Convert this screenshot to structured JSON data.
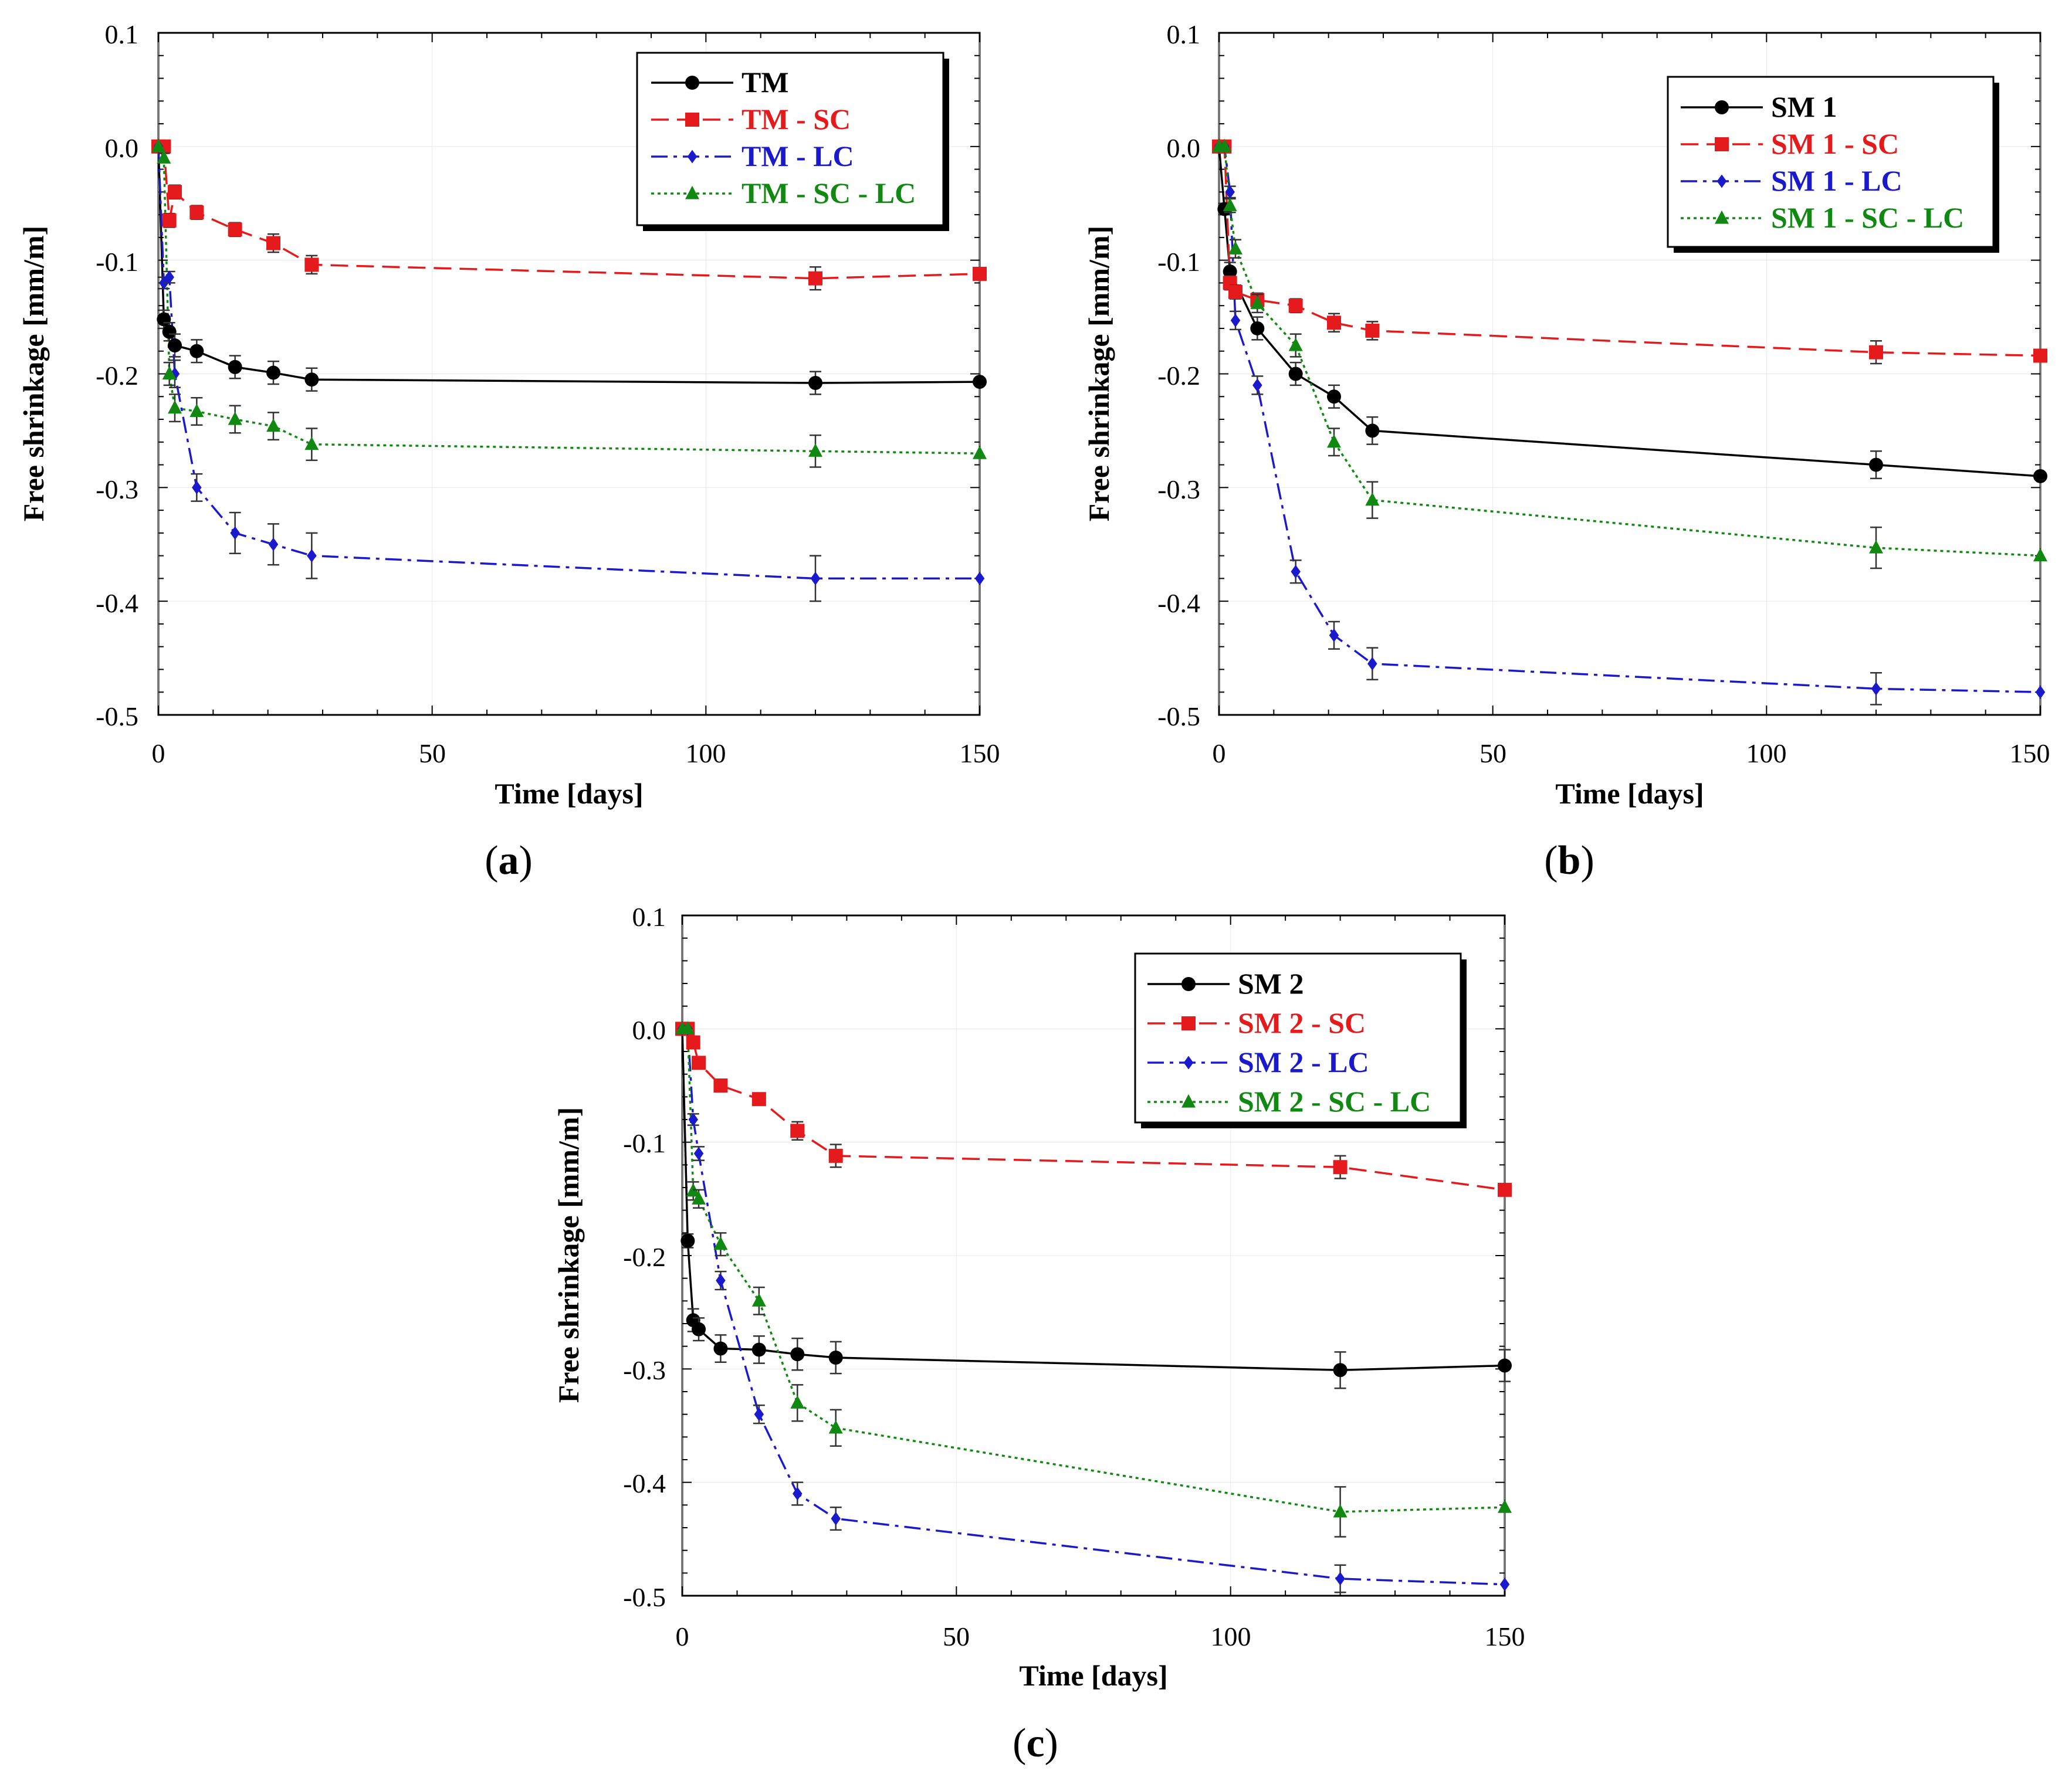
{
  "chart_data": [
    {
      "type": "line",
      "panel_caption": "a",
      "xlabel": "Time [days]",
      "ylabel": "Free shrinkage [mm/m]",
      "xlim": [
        0,
        150
      ],
      "ylim": [
        -0.5,
        0.1
      ],
      "xticks": [
        "0",
        "50",
        "100",
        "150"
      ],
      "yticks": [
        "0.1",
        "0.0",
        "-0.1",
        "-0.2",
        "-0.3",
        "-0.4",
        "-0.5"
      ],
      "legend_position": "top-right",
      "series": [
        {
          "name": "TM",
          "color": "#000000",
          "dash": "solid",
          "marker": "circle",
          "x": [
            0,
            1,
            2,
            3,
            7,
            14,
            21,
            28,
            120,
            150
          ],
          "y": [
            0,
            -0.152,
            -0.163,
            -0.175,
            -0.18,
            -0.194,
            -0.199,
            -0.205,
            -0.208,
            -0.207
          ],
          "err": [
            0,
            0.008,
            0.008,
            0.01,
            0.01,
            0.01,
            0.01,
            0.01,
            0.01,
            0
          ]
        },
        {
          "name": "TM - SC",
          "color": "#e41a1c",
          "dash": "dashed",
          "marker": "square",
          "x": [
            0,
            1,
            2,
            3,
            7,
            14,
            21,
            28,
            120,
            150
          ],
          "y": [
            0,
            0,
            -0.065,
            -0.04,
            -0.058,
            -0.073,
            -0.085,
            -0.104,
            -0.116,
            -0.112
          ],
          "err": [
            0,
            0,
            0.006,
            0.006,
            0.006,
            0.006,
            0.008,
            0.008,
            0.01,
            0
          ]
        },
        {
          "name": "TM - LC",
          "color": "#1a1acc",
          "dash": "dashdot",
          "marker": "diamond",
          "x": [
            0,
            1,
            2,
            3,
            7,
            14,
            21,
            28,
            120,
            150
          ],
          "y": [
            0,
            -0.12,
            -0.115,
            -0.2,
            -0.3,
            -0.34,
            -0.35,
            -0.36,
            -0.38,
            -0.38
          ],
          "err": [
            0,
            0.005,
            0.005,
            0.012,
            0.012,
            0.018,
            0.018,
            0.02,
            0.02,
            0
          ]
        },
        {
          "name": "TM - SC - LC",
          "color": "#118811",
          "dash": "dotted",
          "marker": "triangle",
          "x": [
            0,
            1,
            2,
            3,
            7,
            14,
            21,
            28,
            120,
            150
          ],
          "y": [
            0,
            -0.01,
            -0.2,
            -0.23,
            -0.233,
            -0.24,
            -0.246,
            -0.262,
            -0.268,
            -0.27
          ],
          "err": [
            0,
            0.004,
            0.01,
            0.012,
            0.012,
            0.012,
            0.012,
            0.014,
            0.014,
            0
          ]
        }
      ]
    },
    {
      "type": "line",
      "panel_caption": "b",
      "xlabel": "Time [days]",
      "ylabel": "Free shrinkage [mm/m]",
      "xlim": [
        0,
        150
      ],
      "ylim": [
        -0.5,
        0.1
      ],
      "xticks": [
        "0",
        "50",
        "100",
        "150"
      ],
      "yticks": [
        "0.1",
        "0.0",
        "-0.1",
        "-0.2",
        "-0.3",
        "-0.4",
        "-0.5"
      ],
      "legend_position": "top-right",
      "series": [
        {
          "name": "SM 1",
          "color": "#000000",
          "dash": "solid",
          "marker": "circle",
          "x": [
            0,
            1,
            2,
            7,
            14,
            21,
            28,
            120,
            150
          ],
          "y": [
            0,
            -0.055,
            -0.11,
            -0.16,
            -0.2,
            -0.22,
            -0.25,
            -0.28,
            -0.29
          ],
          "err": [
            0,
            0.005,
            0.008,
            0.01,
            0.01,
            0.01,
            0.012,
            0.012,
            0
          ]
        },
        {
          "name": "SM 1 - SC",
          "color": "#e41a1c",
          "dash": "dashed",
          "marker": "square",
          "x": [
            0,
            1,
            2,
            3,
            7,
            14,
            21,
            28,
            120,
            150
          ],
          "y": [
            0,
            0,
            -0.12,
            -0.128,
            -0.135,
            -0.14,
            -0.155,
            -0.162,
            -0.181,
            -0.184
          ],
          "err": [
            0,
            0,
            0.006,
            0.006,
            0.006,
            0.006,
            0.008,
            0.008,
            0.01,
            0
          ]
        },
        {
          "name": "SM 1 - LC",
          "color": "#1a1acc",
          "dash": "dashdot",
          "marker": "diamond",
          "x": [
            0,
            1,
            2,
            3,
            7,
            14,
            21,
            28,
            120,
            150
          ],
          "y": [
            0,
            0,
            -0.04,
            -0.153,
            -0.21,
            -0.374,
            -0.43,
            -0.455,
            -0.477,
            -0.48
          ],
          "err": [
            0,
            0,
            0.005,
            0.008,
            0.008,
            0.01,
            0.012,
            0.014,
            0.014,
            0
          ]
        },
        {
          "name": "SM 1 - SC - LC",
          "color": "#118811",
          "dash": "dotted",
          "marker": "triangle",
          "x": [
            0,
            1,
            2,
            3,
            7,
            14,
            21,
            28,
            120,
            150
          ],
          "y": [
            0,
            0,
            -0.052,
            -0.09,
            -0.138,
            -0.175,
            -0.26,
            -0.311,
            -0.353,
            -0.36
          ],
          "err": [
            0,
            0,
            0.006,
            0.008,
            0.008,
            0.01,
            0.012,
            0.016,
            0.018,
            0
          ]
        }
      ]
    },
    {
      "type": "line",
      "panel_caption": "c",
      "xlabel": "Time [days]",
      "ylabel": "Free shrinkage [mm/m]",
      "xlim": [
        0,
        150
      ],
      "ylim": [
        -0.5,
        0.1
      ],
      "xticks": [
        "0",
        "50",
        "100",
        "150"
      ],
      "yticks": [
        "0.1",
        "0.0",
        "-0.1",
        "-0.2",
        "-0.3",
        "-0.4",
        "-0.5"
      ],
      "legend_position": "top-right",
      "series": [
        {
          "name": "SM 2",
          "color": "#000000",
          "dash": "solid",
          "marker": "circle",
          "x": [
            0,
            1,
            2,
            3,
            7,
            14,
            21,
            28,
            120,
            150
          ],
          "y": [
            0,
            -0.187,
            -0.257,
            -0.265,
            -0.282,
            -0.283,
            -0.287,
            -0.29,
            -0.301,
            -0.297
          ],
          "err": [
            0,
            0.006,
            0.01,
            0.01,
            0.012,
            0.012,
            0.014,
            0.014,
            0.016,
            0.014
          ]
        },
        {
          "name": "SM 2 - SC",
          "color": "#e41a1c",
          "dash": "dashed",
          "marker": "square",
          "x": [
            0,
            1,
            2,
            3,
            7,
            14,
            21,
            28,
            120,
            150
          ],
          "y": [
            0,
            0,
            -0.012,
            -0.03,
            -0.05,
            -0.062,
            -0.09,
            -0.112,
            -0.122,
            -0.142
          ],
          "err": [
            0,
            0,
            0.004,
            0.004,
            0.005,
            0.005,
            0.008,
            0.01,
            0.01,
            0
          ]
        },
        {
          "name": "SM 2 - LC",
          "color": "#1a1acc",
          "dash": "dashdot",
          "marker": "diamond",
          "x": [
            0,
            1,
            2,
            3,
            7,
            14,
            21,
            28,
            120,
            150
          ],
          "y": [
            0,
            0,
            -0.08,
            -0.11,
            -0.222,
            -0.34,
            -0.41,
            -0.432,
            -0.485,
            -0.49
          ],
          "err": [
            0,
            0,
            0.005,
            0.006,
            0.008,
            0.008,
            0.01,
            0.01,
            0.012,
            0
          ]
        },
        {
          "name": "SM 2 - SC - LC",
          "color": "#118811",
          "dash": "dotted",
          "marker": "triangle",
          "x": [
            0,
            1,
            2,
            3,
            7,
            14,
            21,
            28,
            120,
            150
          ],
          "y": [
            0,
            0,
            -0.143,
            -0.15,
            -0.19,
            -0.24,
            -0.33,
            -0.352,
            -0.426,
            -0.422
          ],
          "err": [
            0,
            0,
            0.008,
            0.008,
            0.01,
            0.012,
            0.016,
            0.016,
            0.022,
            0
          ]
        }
      ]
    }
  ]
}
